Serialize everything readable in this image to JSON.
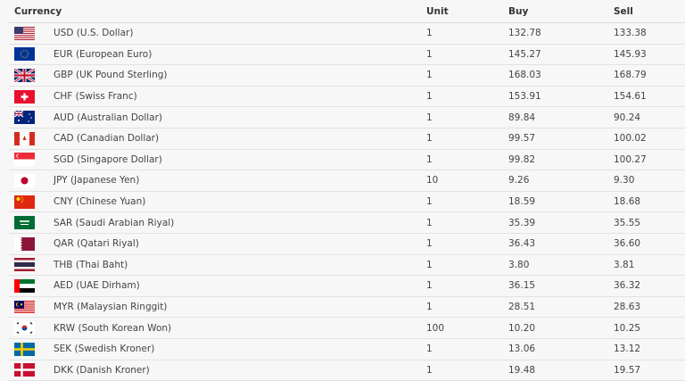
{
  "headers": {
    "currency": "Currency",
    "unit": "Unit",
    "buy": "Buy",
    "sell": "Sell"
  },
  "rows": [
    {
      "flag": "us-flag-icon",
      "name": "USD (U.S. Dollar)",
      "unit": "1",
      "buy": "132.78",
      "sell": "133.38"
    },
    {
      "flag": "eu-flag-icon",
      "name": "EUR (European Euro)",
      "unit": "1",
      "buy": "145.27",
      "sell": "145.93"
    },
    {
      "flag": "uk-flag-icon",
      "name": "GBP (UK Pound Sterling)",
      "unit": "1",
      "buy": "168.03",
      "sell": "168.79"
    },
    {
      "flag": "ch-flag-icon",
      "name": "CHF (Swiss Franc)",
      "unit": "1",
      "buy": "153.91",
      "sell": "154.61"
    },
    {
      "flag": "au-flag-icon",
      "name": "AUD (Australian Dollar)",
      "unit": "1",
      "buy": "89.84",
      "sell": "90.24"
    },
    {
      "flag": "ca-flag-icon",
      "name": "CAD (Canadian Dollar)",
      "unit": "1",
      "buy": "99.57",
      "sell": "100.02"
    },
    {
      "flag": "sg-flag-icon",
      "name": "SGD (Singapore Dollar)",
      "unit": "1",
      "buy": "99.82",
      "sell": "100.27"
    },
    {
      "flag": "jp-flag-icon",
      "name": "JPY (Japanese Yen)",
      "unit": "10",
      "buy": "9.26",
      "sell": "9.30"
    },
    {
      "flag": "cn-flag-icon",
      "name": "CNY (Chinese Yuan)",
      "unit": "1",
      "buy": "18.59",
      "sell": "18.68"
    },
    {
      "flag": "sa-flag-icon",
      "name": "SAR (Saudi Arabian Riyal)",
      "unit": "1",
      "buy": "35.39",
      "sell": "35.55"
    },
    {
      "flag": "qa-flag-icon",
      "name": "QAR (Qatari Riyal)",
      "unit": "1",
      "buy": "36.43",
      "sell": "36.60"
    },
    {
      "flag": "th-flag-icon",
      "name": "THB (Thai Baht)",
      "unit": "1",
      "buy": "3.80",
      "sell": "3.81"
    },
    {
      "flag": "ae-flag-icon",
      "name": "AED (UAE Dirham)",
      "unit": "1",
      "buy": "36.15",
      "sell": "36.32"
    },
    {
      "flag": "my-flag-icon",
      "name": "MYR (Malaysian Ringgit)",
      "unit": "1",
      "buy": "28.51",
      "sell": "28.63"
    },
    {
      "flag": "kr-flag-icon",
      "name": "KRW (South Korean Won)",
      "unit": "100",
      "buy": "10.20",
      "sell": "10.25"
    },
    {
      "flag": "se-flag-icon",
      "name": "SEK (Swedish Kroner)",
      "unit": "1",
      "buy": "13.06",
      "sell": "13.12"
    },
    {
      "flag": "dk-flag-icon",
      "name": "DKK (Danish Kroner)",
      "unit": "1",
      "buy": "19.48",
      "sell": "19.57"
    }
  ]
}
